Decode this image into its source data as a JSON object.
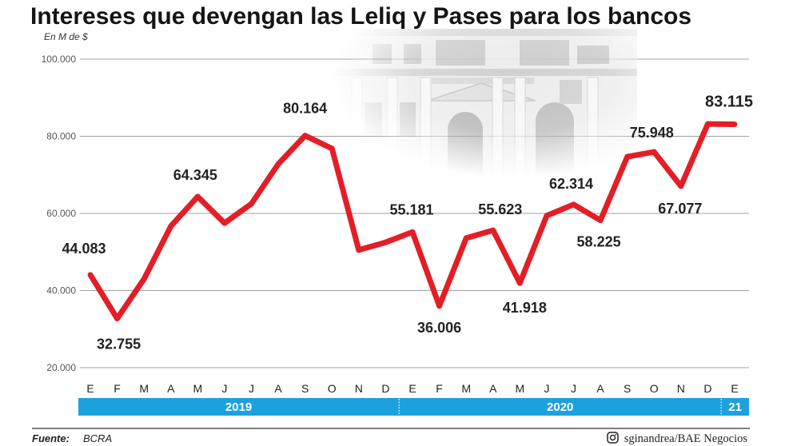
{
  "colors": {
    "line": "#e31e26",
    "year_bar": "#1da1dd",
    "grid": "#a0a0a0"
  },
  "chart_data": {
    "type": "line",
    "title": "Intereses que devengan las Leliq y Pases para los bancos",
    "ylabel": "En M de $",
    "xlabel": "",
    "categories": [
      "E",
      "F",
      "M",
      "A",
      "M",
      "J",
      "J",
      "A",
      "S",
      "O",
      "N",
      "D",
      "E",
      "F",
      "M",
      "A",
      "M",
      "J",
      "J",
      "A",
      "S",
      "O",
      "N",
      "D",
      "E"
    ],
    "years": [
      {
        "label": "2019",
        "months": 12
      },
      {
        "label": "2020",
        "months": 12
      },
      {
        "label": "21",
        "months": 1
      }
    ],
    "values": [
      44083,
      32755,
      43000,
      56700,
      64345,
      57500,
      62500,
      72800,
      80164,
      76800,
      50500,
      52500,
      55181,
      36006,
      53600,
      55623,
      41918,
      59400,
      62314,
      58225,
      74700,
      75948,
      67077,
      83200,
      83115
    ],
    "ylim": [
      20000,
      100000
    ],
    "yticks": [
      100000,
      80000,
      60000,
      40000,
      20000
    ],
    "ytick_labels": [
      "100.000",
      "80.000",
      "60.000",
      "40.000",
      "20.000"
    ],
    "grid": true,
    "data_labels": [
      {
        "index": 0,
        "text": "44.083"
      },
      {
        "index": 1,
        "text": "32.755"
      },
      {
        "index": 4,
        "text": "64.345"
      },
      {
        "index": 8,
        "text": "80.164"
      },
      {
        "index": 12,
        "text": "55.181"
      },
      {
        "index": 13,
        "text": "36.006"
      },
      {
        "index": 15,
        "text": "55.623"
      },
      {
        "index": 16,
        "text": "41.918"
      },
      {
        "index": 18,
        "text": "62.314"
      },
      {
        "index": 19,
        "text": "58.225"
      },
      {
        "index": 21,
        "text": "75.948"
      },
      {
        "index": 22,
        "text": "67.077"
      },
      {
        "index": 24,
        "text": "83.115"
      }
    ]
  },
  "footer": {
    "source_label": "Fuente:",
    "source": "BCRA",
    "credit_icon": "instagram-icon",
    "credit": "sginandrea/BAE Negocios"
  }
}
